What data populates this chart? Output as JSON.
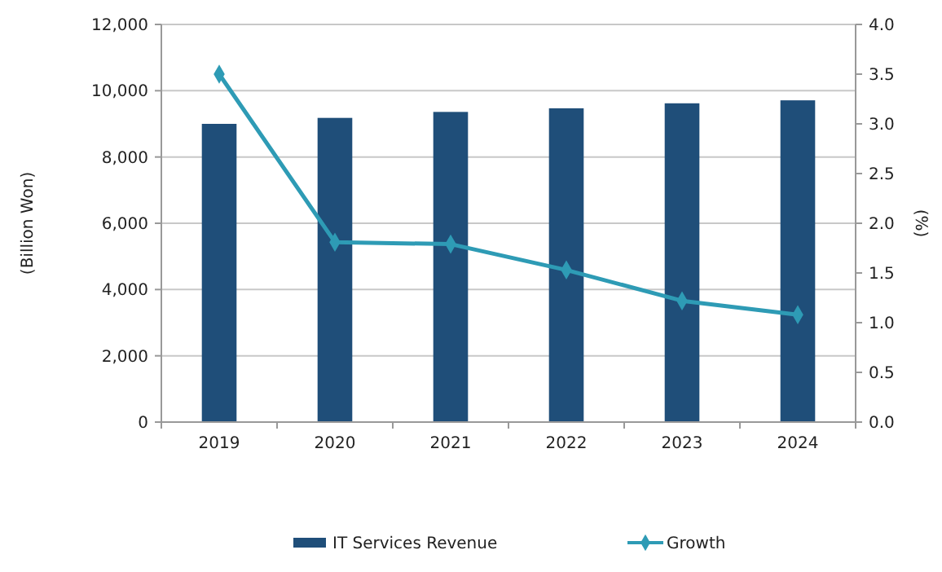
{
  "chart_data": {
    "type": "bar",
    "ylabel": "(Billion Won)",
    "y2label": "(%)",
    "categories": [
      "2019",
      "2020",
      "2021",
      "2022",
      "2023",
      "2024"
    ],
    "series": [
      {
        "name": "IT Services Revenue",
        "color": "#1f4e79",
        "values": [
          9000,
          9180,
          9360,
          9470,
          9620,
          9710
        ]
      },
      {
        "name": "Growth",
        "type": "line",
        "axis": "y2",
        "color": "#2e9bb5",
        "marker": "diamond",
        "values": [
          3.5,
          1.81,
          1.79,
          1.53,
          1.22,
          1.08
        ]
      }
    ],
    "ylim": [
      0,
      12000
    ],
    "yticks": [
      {
        "value": 0,
        "label": "0"
      },
      {
        "value": 2000,
        "label": "2,000"
      },
      {
        "value": 4000,
        "label": "4,000"
      },
      {
        "value": 6000,
        "label": "6,000"
      },
      {
        "value": 8000,
        "label": "8,000"
      },
      {
        "value": 10000,
        "label": "10,000"
      },
      {
        "value": 12000,
        "label": "12,000"
      }
    ],
    "y2lim": [
      0,
      4
    ],
    "y2ticks": [
      {
        "value": 0,
        "label": "0.0"
      },
      {
        "value": 0.5,
        "label": "0.5"
      },
      {
        "value": 1,
        "label": "1.0"
      },
      {
        "value": 1.5,
        "label": "1.5"
      },
      {
        "value": 2,
        "label": "2.0"
      },
      {
        "value": 2.5,
        "label": "2.5"
      },
      {
        "value": 3,
        "label": "3.0"
      },
      {
        "value": 3.5,
        "label": "3.5"
      },
      {
        "value": 4,
        "label": "4.0"
      }
    ],
    "grid": "y",
    "legend": "bottom"
  }
}
